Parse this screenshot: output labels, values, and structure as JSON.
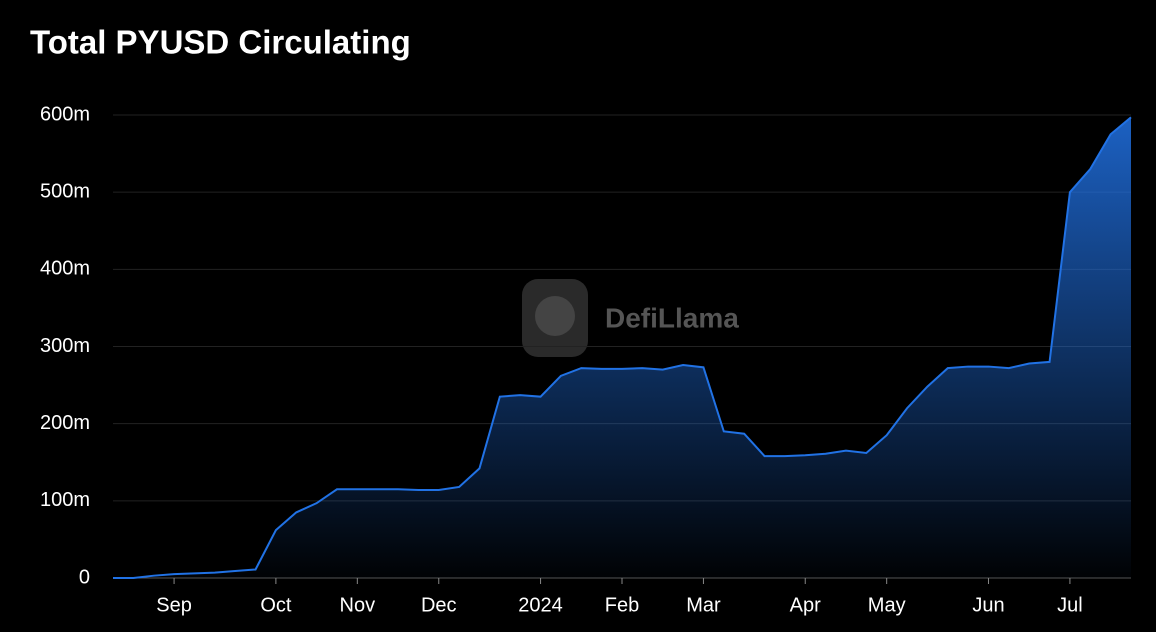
{
  "chart_data": {
    "type": "area",
    "title": "Total PYUSD Circulating",
    "watermark": "DefiLlama",
    "categories": [
      null,
      null,
      null,
      "Sep",
      null,
      null,
      null,
      null,
      "Oct",
      null,
      null,
      null,
      "Nov",
      null,
      null,
      null,
      "Dec",
      null,
      null,
      null,
      null,
      "2024",
      null,
      null,
      null,
      "Feb",
      null,
      null,
      null,
      "Mar",
      null,
      null,
      null,
      null,
      "Apr",
      null,
      null,
      null,
      "May",
      null,
      null,
      null,
      null,
      "Jun",
      null,
      null,
      null,
      "Jul",
      null,
      null,
      null
    ],
    "values": [
      0,
      0,
      3,
      5,
      6,
      7,
      9,
      11,
      62,
      85,
      97,
      115,
      115,
      115,
      115,
      114,
      114,
      118,
      142,
      235,
      237,
      235,
      262,
      272,
      271,
      271,
      272,
      270,
      276,
      273,
      190,
      187,
      158,
      158,
      159,
      161,
      165,
      162,
      185,
      220,
      248,
      272,
      274,
      274,
      272,
      278,
      280,
      500,
      530,
      575,
      597
    ],
    "color": "#2172e5",
    "ylim": [
      0,
      600
    ],
    "yticks": [
      0,
      {
        "value": 100,
        "label": "100m"
      },
      {
        "value": 200,
        "label": "200m"
      },
      {
        "value": 300,
        "label": "300m"
      },
      {
        "value": 400,
        "label": "400m"
      },
      {
        "value": 500,
        "label": "500m"
      },
      {
        "value": 600,
        "label": "600m"
      }
    ],
    "grid": true
  }
}
